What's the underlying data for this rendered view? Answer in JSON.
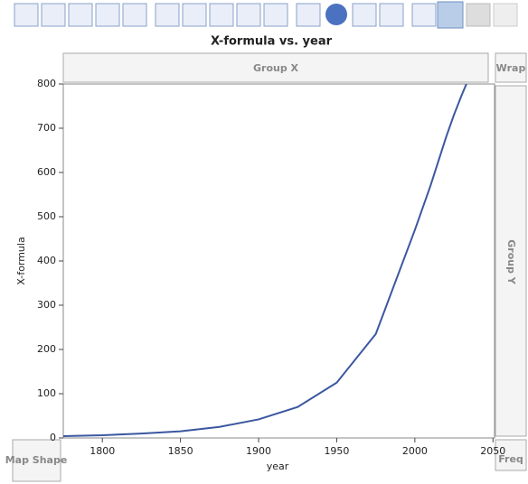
{
  "chart_data": {
    "type": "line",
    "title": "X-formula vs. year",
    "x_label": "year",
    "y_label": "X-formula",
    "x": [
      1775,
      1800,
      1825,
      1850,
      1875,
      1900,
      1925,
      1950,
      1975,
      2000,
      2010,
      2020,
      2025,
      2030,
      2033
    ],
    "series": [
      {
        "name": "X-formula",
        "color": "#3b57a0",
        "values": [
          4,
          6,
          10,
          15,
          25,
          42,
          70,
          125,
          235,
          470,
          570,
          680,
          730,
          775,
          800
        ]
      }
    ],
    "xlim": [
      1775,
      2051
    ],
    "xticks": [
      1800,
      1850,
      1900,
      1950,
      2000,
      2050
    ],
    "ylim": [
      0,
      800
    ],
    "yticks": [
      0,
      100,
      200,
      300,
      400,
      500,
      600,
      700,
      800
    ]
  },
  "drop_zones": {
    "group_x": "Group X",
    "wrap": "Wrap",
    "group_y": "Group Y",
    "map_shape": "Map Shape",
    "freq": "Freq"
  }
}
